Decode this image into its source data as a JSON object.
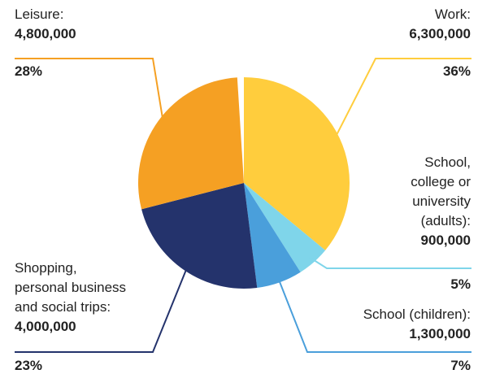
{
  "chart_data": {
    "type": "pie",
    "colors": [
      "#FFCD3D",
      "#7FD5EA",
      "#4A9FDB",
      "#24336C",
      "#F5A023"
    ],
    "slices": [
      {
        "label": [
          "Work:"
        ],
        "value": "6,300,000",
        "percent": "36%",
        "share": 0.36
      },
      {
        "label": [
          "School,",
          "college or",
          "university",
          "(adults):"
        ],
        "value": "900,000",
        "percent": "5%",
        "share": 0.05
      },
      {
        "label": [
          "School (children):"
        ],
        "value": "1,300,000",
        "percent": "7%",
        "share": 0.07
      },
      {
        "label": [
          "Shopping,",
          "personal business",
          "and social trips:"
        ],
        "value": "4,000,000",
        "percent": "23%",
        "share": 0.23
      },
      {
        "label": [
          "Leisure:"
        ],
        "value": "4,800,000",
        "percent": "28%",
        "share": 0.28
      }
    ]
  }
}
